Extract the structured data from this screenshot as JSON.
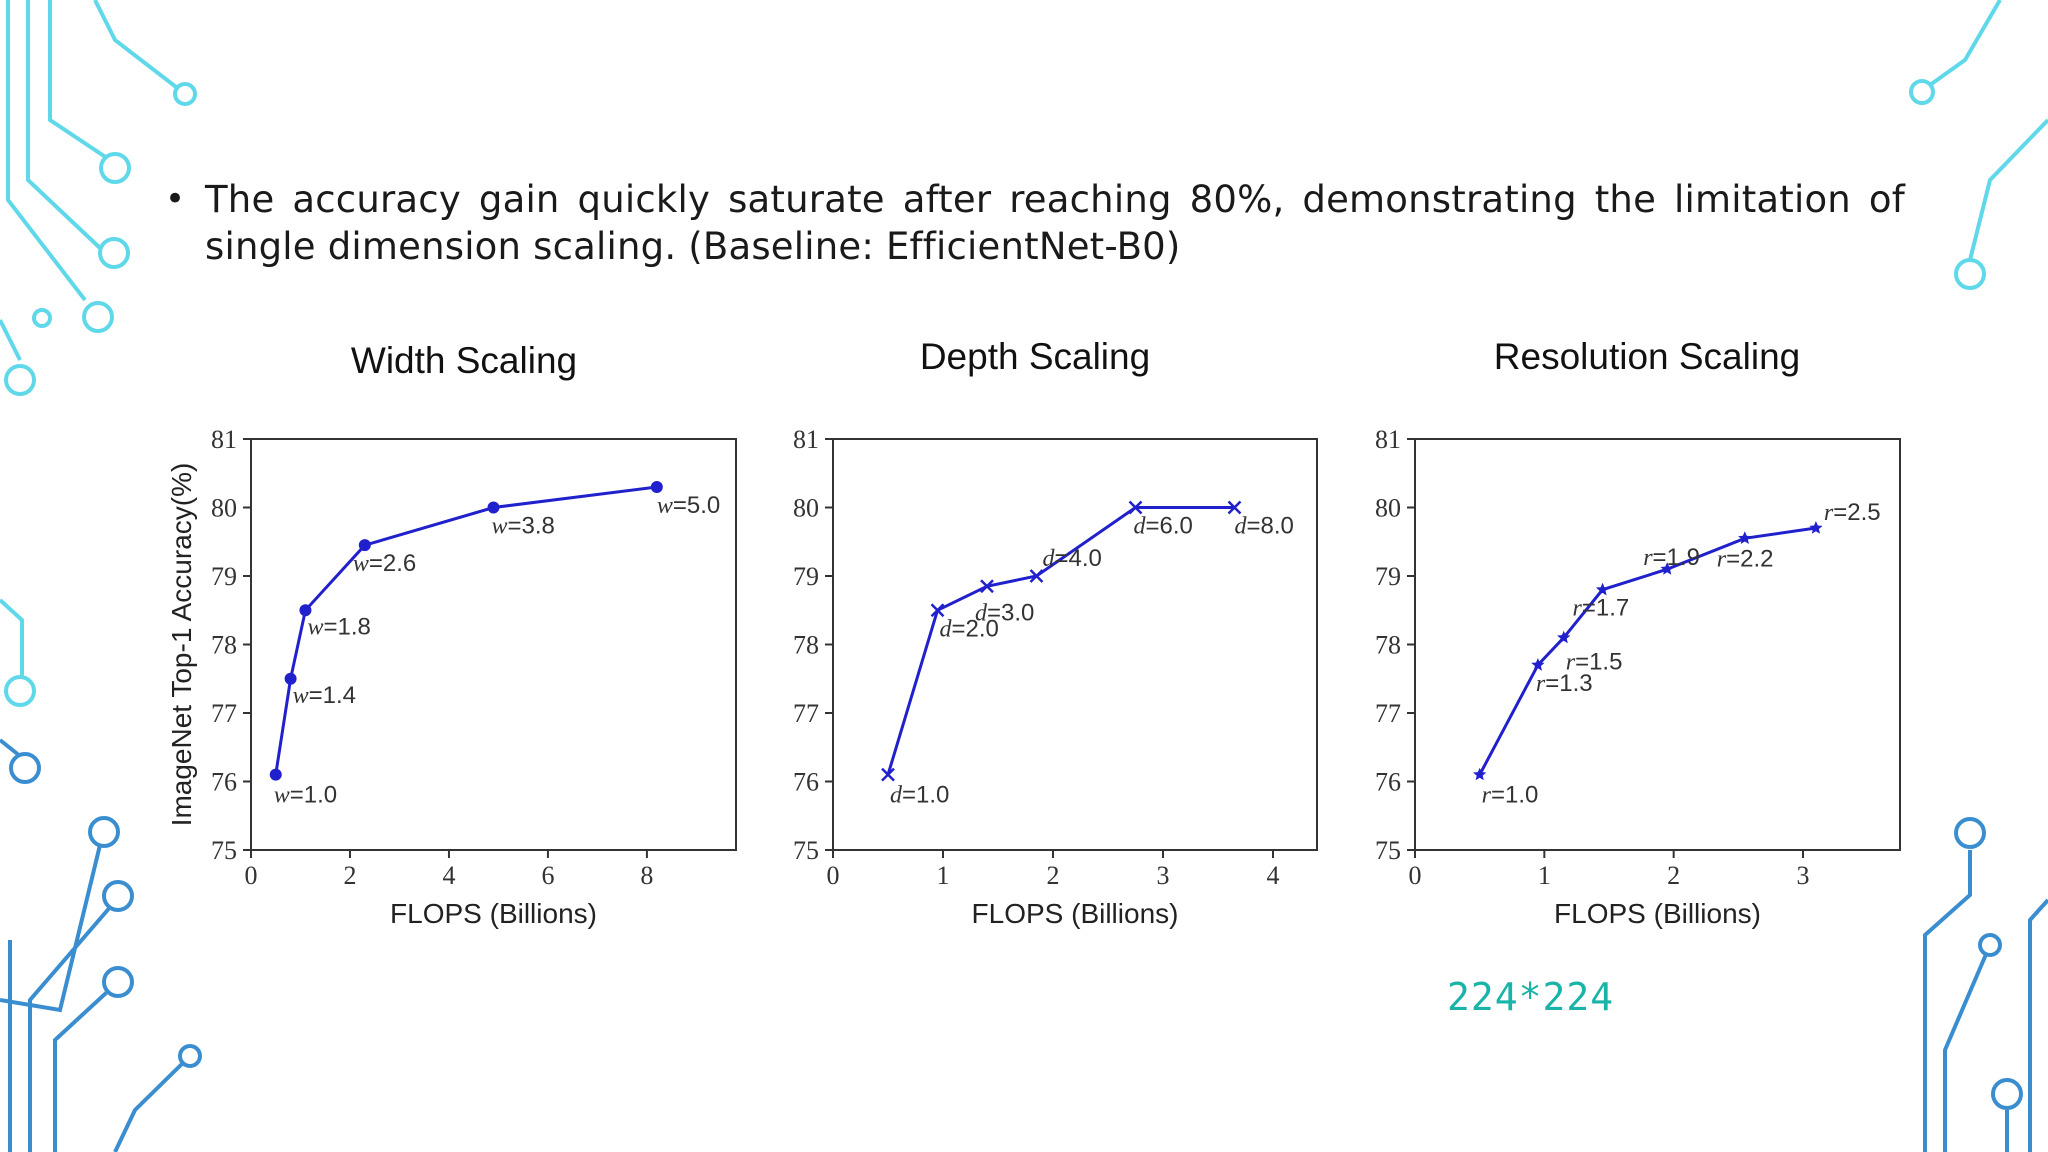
{
  "slide": {
    "bullet": "The accuracy gain quickly saturate after reaching 80%, demonstrating the limitation of single dimension scaling. (Baseline: EfficientNet-B0)",
    "note": "224*224",
    "colors": {
      "line": "#2020cc",
      "circuit_light": "#5fd8ea",
      "circuit_dark": "#3a8ed0",
      "note": "#1ab3a8"
    }
  },
  "chart_data": [
    {
      "type": "line",
      "title": "Width Scaling",
      "xlabel": "FLOPS (Billions)",
      "ylabel": "ImageNet Top-1 Accuracy(%)",
      "xlim": [
        0,
        9.8
      ],
      "ylim": [
        75,
        81
      ],
      "xticks": [
        0,
        2,
        4,
        6,
        8
      ],
      "yticks": [
        75,
        76,
        77,
        78,
        79,
        80,
        81
      ],
      "marker": "circle",
      "series": [
        {
          "values": [
            {
              "x": 0.5,
              "y": 76.1,
              "label": "w=1.0",
              "var": "w",
              "val": "1.0"
            },
            {
              "x": 0.8,
              "y": 77.5,
              "label": "w=1.4",
              "var": "w",
              "val": "1.4"
            },
            {
              "x": 1.1,
              "y": 78.5,
              "label": "w=1.8",
              "var": "w",
              "val": "1.8"
            },
            {
              "x": 2.3,
              "y": 79.45,
              "label": "w=2.6",
              "var": "w",
              "val": "2.6"
            },
            {
              "x": 4.9,
              "y": 80.0,
              "label": "w=3.8",
              "var": "w",
              "val": "3.8"
            },
            {
              "x": 8.2,
              "y": 80.3,
              "label": "w=5.0",
              "var": "w",
              "val": "5.0"
            }
          ]
        }
      ]
    },
    {
      "type": "line",
      "title": "Depth Scaling",
      "xlabel": "FLOPS (Billions)",
      "ylabel": "",
      "xlim": [
        0,
        4.4
      ],
      "ylim": [
        75,
        81
      ],
      "xticks": [
        0,
        1,
        2,
        3,
        4
      ],
      "yticks": [
        75,
        76,
        77,
        78,
        79,
        80,
        81
      ],
      "marker": "x",
      "series": [
        {
          "values": [
            {
              "x": 0.5,
              "y": 76.1,
              "label": "d=1.0",
              "var": "d",
              "val": "1.0"
            },
            {
              "x": 0.95,
              "y": 78.5,
              "label": "d=2.0",
              "var": "d",
              "val": "2.0"
            },
            {
              "x": 1.4,
              "y": 78.85,
              "label": "d=3.0",
              "var": "d",
              "val": "3.0"
            },
            {
              "x": 1.85,
              "y": 79.0,
              "label": "d=4.0",
              "var": "d",
              "val": "4.0"
            },
            {
              "x": 2.75,
              "y": 80.0,
              "label": "d=6.0",
              "var": "d",
              "val": "6.0"
            },
            {
              "x": 3.65,
              "y": 80.0,
              "label": "d=8.0",
              "var": "d",
              "val": "8.0"
            }
          ]
        }
      ]
    },
    {
      "type": "line",
      "title": "Resolution Scaling",
      "xlabel": "FLOPS (Billions)",
      "ylabel": "",
      "xlim": [
        0,
        3.75
      ],
      "ylim": [
        75,
        81
      ],
      "xticks": [
        0,
        1,
        2,
        3
      ],
      "yticks": [
        75,
        76,
        77,
        78,
        79,
        80,
        81
      ],
      "marker": "star",
      "series": [
        {
          "values": [
            {
              "x": 0.5,
              "y": 76.1,
              "label": "r=1.0",
              "var": "r",
              "val": "1.0"
            },
            {
              "x": 0.95,
              "y": 77.7,
              "label": "r=1.3",
              "var": "r",
              "val": "1.3"
            },
            {
              "x": 1.15,
              "y": 78.1,
              "label": "r=1.5",
              "var": "r",
              "val": "1.5"
            },
            {
              "x": 1.45,
              "y": 78.8,
              "label": "r=1.7",
              "var": "r",
              "val": "1.7"
            },
            {
              "x": 1.95,
              "y": 79.1,
              "label": "r=1.9",
              "var": "r",
              "val": "1.9"
            },
            {
              "x": 2.55,
              "y": 79.55,
              "label": "r=2.2",
              "var": "r",
              "val": "2.2"
            },
            {
              "x": 3.1,
              "y": 79.7,
              "label": "r=2.5",
              "var": "r",
              "val": "2.5"
            }
          ]
        }
      ]
    }
  ]
}
